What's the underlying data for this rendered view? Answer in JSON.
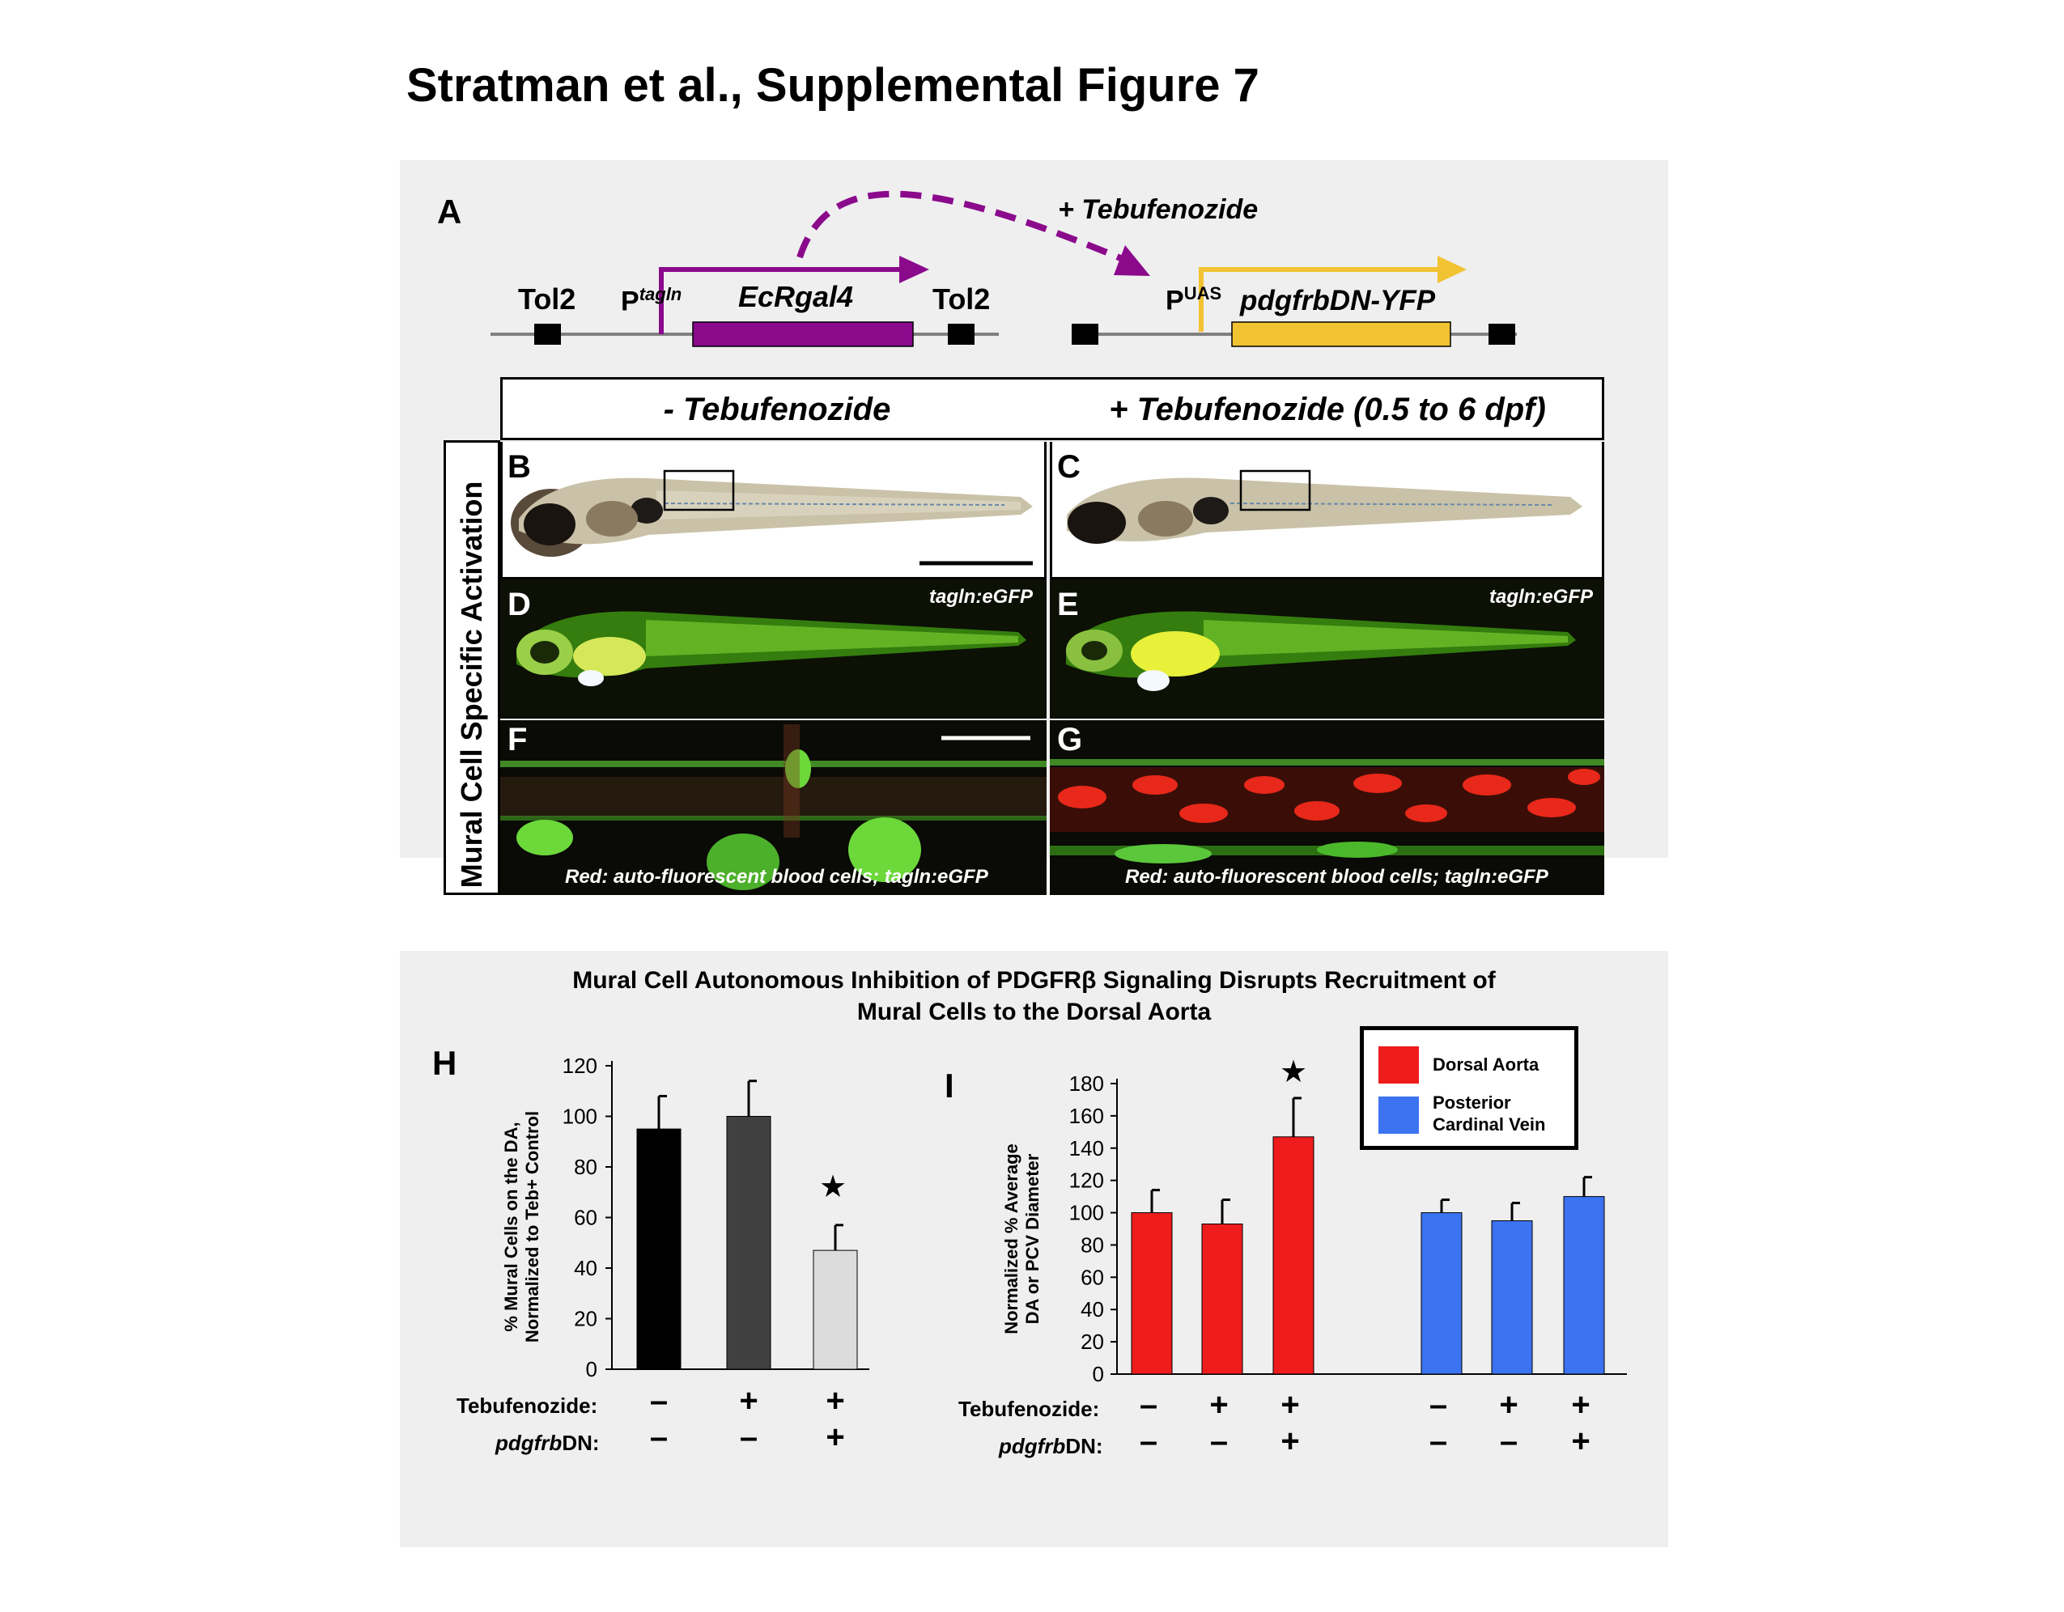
{
  "title": "Stratman et al., Supplemental Figure 7",
  "panel_a": {
    "letter": "A",
    "tol2_left": "Tol2",
    "tol2_right": "Tol2",
    "promoter1_p": "P",
    "promoter1_sup": "tagln",
    "gene1": "EcRgal4",
    "treatment_arrow_label": "+ Tebufenozide",
    "promoter2_p": "P",
    "promoter2_sup": "UAS",
    "gene2": "pdgfrbDN-YFP",
    "colors": {
      "gene1": "#8b0a8c",
      "gene2": "#f1c232"
    }
  },
  "images": {
    "header_left": "- Tebufenozide",
    "header_right": "+ Tebufenozide (0.5 to 6 dpf)",
    "side_label": "Mural Cell Specific Activation",
    "panel_letters": [
      "B",
      "C",
      "D",
      "E",
      "F",
      "G"
    ],
    "fluor_label_d": "tagln:eGFP",
    "fluor_label_e": "tagln:eGFP",
    "caption_f": "Red: auto-fluorescent blood cells; tagln:eGFP",
    "caption_g": "Red: auto-fluorescent blood cells; tagln:eGFP"
  },
  "bottom": {
    "title_line1": "Mural Cell Autonomous Inhibition of PDGFRβ Signaling Disrupts Recruitment of",
    "title_line2": "Mural Cells to the Dorsal Aorta",
    "row_label_teb": "Tebufenozide:",
    "row_label_dn_italic": "pdgfrb",
    "row_label_dn_rest": "DN:"
  },
  "chart_data": [
    {
      "panel": "H",
      "type": "bar",
      "ylabel_line1": "% Mural Cells on the DA,",
      "ylabel_line2": "Normalized to Teb+ Control",
      "ylim": [
        0,
        120
      ],
      "yticks": [
        0,
        20,
        40,
        60,
        80,
        100,
        120
      ],
      "values": [
        95,
        100,
        47
      ],
      "errors": [
        13,
        14,
        10
      ],
      "colors": [
        "#000000",
        "#404040",
        "#dcdcdc"
      ],
      "tebufenozide": [
        "-",
        "+",
        "+"
      ],
      "pdgfrbDN": [
        "-",
        "-",
        "+"
      ],
      "significant": [
        false,
        false,
        true
      ]
    },
    {
      "panel": "I",
      "type": "bar",
      "ylabel_line1": "Normalized % Average",
      "ylabel_line2": "DA or PCV Diameter",
      "ylim": [
        0,
        180
      ],
      "yticks": [
        0,
        20,
        40,
        60,
        80,
        100,
        120,
        140,
        160,
        180
      ],
      "legend": [
        "Dorsal Aorta",
        "Posterior Cardinal Vein"
      ],
      "series": [
        {
          "name": "Dorsal Aorta",
          "color": "#ee1c1c",
          "values": [
            100,
            93,
            147
          ],
          "errors": [
            14,
            15,
            24
          ]
        },
        {
          "name": "Posterior Cardinal Vein",
          "color": "#3b73f0",
          "values": [
            100,
            95,
            110
          ],
          "errors": [
            8,
            11,
            12
          ]
        }
      ],
      "tebufenozide": [
        "-",
        "+",
        "+",
        "-",
        "+",
        "+"
      ],
      "pdgfrbDN": [
        "-",
        "-",
        "+",
        "-",
        "-",
        "+"
      ],
      "significant": [
        false,
        false,
        true,
        false,
        false,
        false
      ]
    }
  ]
}
